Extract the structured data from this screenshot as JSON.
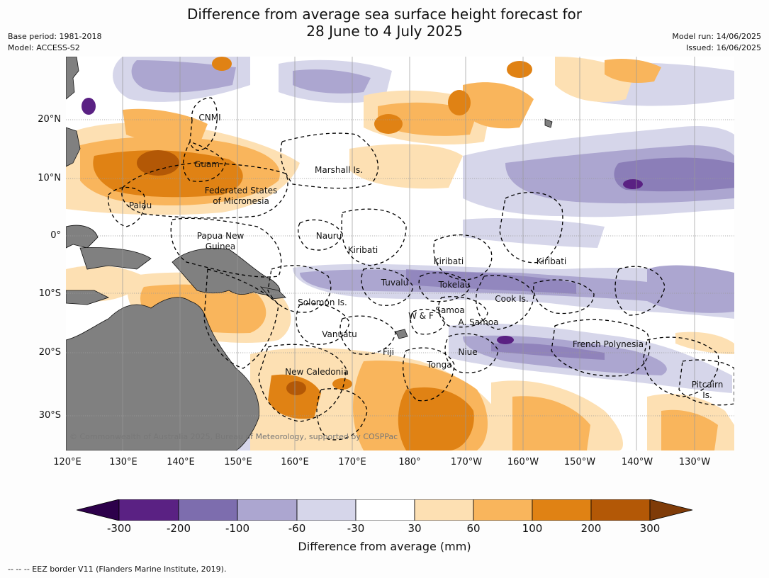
{
  "title": {
    "line1": "Difference from average sea surface height forecast for",
    "line2": "28 June to 4 July 2025"
  },
  "meta_left": {
    "base_period": "Base period: 1981-2018",
    "model": "Model: ACCESS-S2"
  },
  "meta_right": {
    "model_run": "Model run: 14/06/2025",
    "issued": "Issued: 16/06/2025"
  },
  "axes": {
    "lat_labels": [
      "20°N",
      "10°N",
      "0°",
      "10°S",
      "20°S",
      "30°S"
    ],
    "lon_labels": [
      "120°E",
      "130°E",
      "140°E",
      "150°E",
      "160°E",
      "170°E",
      "180°",
      "170°W",
      "160°W",
      "150°W",
      "140°W",
      "130°W"
    ]
  },
  "places": [
    "CNMI",
    "Guam",
    "Marshall Is.",
    "Federated States",
    "of Micronesia",
    "Palau",
    "Papua New",
    "Guinea",
    "Nauru",
    "Kiribati",
    "Kiribati",
    "Kiribati",
    "Tuvalu",
    "Tokelau",
    "Cook Is.",
    "Solomon Is.",
    "Samoa",
    "W & F",
    "A. Samoa",
    "Vanuatu",
    "Fiji",
    "Niue",
    "French Polynesia",
    "Tonga",
    "New Caledonia",
    "Pitcairn",
    "Is."
  ],
  "copyright": "© Commonwealth of Australia 2025, Bureau of Meteorology, supported by COSPPac",
  "colorbar": {
    "ticks": [
      "-300",
      "-200",
      "-100",
      "-60",
      "-30",
      "30",
      "60",
      "100",
      "200",
      "300"
    ],
    "colors": [
      "#5a2183",
      "#7d6dae",
      "#aca6d0",
      "#d6d6ea",
      "#ffffff",
      "#fde0b3",
      "#f9b55c",
      "#e08214",
      "#b35806"
    ],
    "under_color": "#2d004b",
    "over_color": "#7f3b08",
    "label": "Difference from average (mm)"
  },
  "footer": "--  --  -- EEZ border V11 (Flanders Marine Institute, 2019).",
  "colors": {
    "land": "#808080",
    "eez_line": "#000000",
    "grid": "#999999"
  }
}
